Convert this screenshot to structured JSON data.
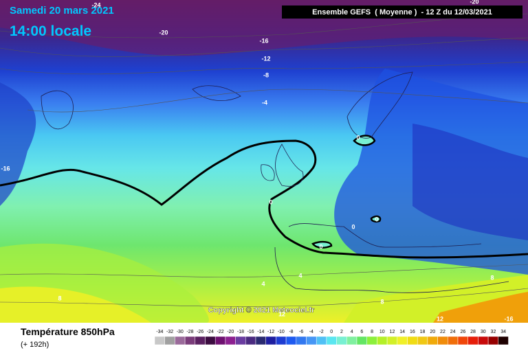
{
  "header": {
    "date": "Samedi 20 mars 2021",
    "time": "14:00 locale",
    "model": "Ensemble GEFS  ( Moyenne )  - 12 Z du 12/03/2021"
  },
  "copyright": "Copyright © 2021 Meteociel.fr",
  "footer": {
    "title": "Température 850hPa",
    "subtitle": "(+ 192h)"
  },
  "contour_labels": [
    -24,
    -20,
    -20,
    -16,
    -12,
    -8,
    -4,
    0,
    -16,
    0,
    0,
    0,
    0,
    4,
    4,
    8,
    8,
    8,
    12,
    12,
    -16
  ],
  "scale": [
    {
      "value": -34,
      "color": "#c8c8c8"
    },
    {
      "value": -32,
      "color": "#a0a0a0"
    },
    {
      "value": -30,
      "color": "#9a6a9a"
    },
    {
      "value": -28,
      "color": "#7a3c7a"
    },
    {
      "value": -26,
      "color": "#5a2060"
    },
    {
      "value": -24,
      "color": "#3c0c40"
    },
    {
      "value": -22,
      "color": "#6e1070"
    },
    {
      "value": -20,
      "color": "#8c2090"
    },
    {
      "value": -18,
      "color": "#6a3ca0"
    },
    {
      "value": -16,
      "color": "#4a2a80"
    },
    {
      "value": -14,
      "color": "#2a2a70"
    },
    {
      "value": -12,
      "color": "#1e1ea0"
    },
    {
      "value": -10,
      "color": "#1e3cd2"
    },
    {
      "value": -8,
      "color": "#1e5af0"
    },
    {
      "value": -6,
      "color": "#3278f0"
    },
    {
      "value": -4,
      "color": "#4696f5"
    },
    {
      "value": -2,
      "color": "#50c0f5"
    },
    {
      "value": 0,
      "color": "#5ae6f0"
    },
    {
      "value": 2,
      "color": "#78f0d2"
    },
    {
      "value": 4,
      "color": "#80f0a0"
    },
    {
      "value": 6,
      "color": "#64e664"
    },
    {
      "value": 8,
      "color": "#8cf03c"
    },
    {
      "value": 10,
      "color": "#b4f028"
    },
    {
      "value": 12,
      "color": "#d2f028"
    },
    {
      "value": 14,
      "color": "#f0f028"
    },
    {
      "value": 16,
      "color": "#f0dc14"
    },
    {
      "value": 18,
      "color": "#f0c814"
    },
    {
      "value": 20,
      "color": "#f0aa0a"
    },
    {
      "value": 22,
      "color": "#f08c0a"
    },
    {
      "value": 24,
      "color": "#f06e0a"
    },
    {
      "value": 26,
      "color": "#f0460a"
    },
    {
      "value": 28,
      "color": "#e61e0a"
    },
    {
      "value": 30,
      "color": "#c80a0a"
    },
    {
      "value": 32,
      "color": "#960000"
    },
    {
      "value": 34,
      "color": "#1e0000"
    }
  ]
}
